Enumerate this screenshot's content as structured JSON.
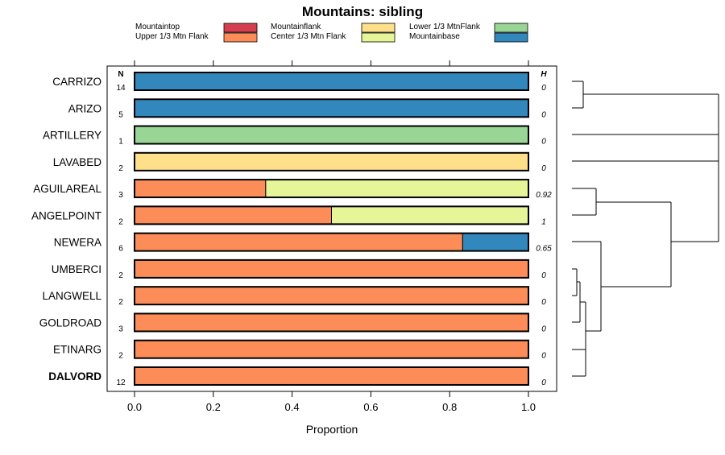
{
  "chart_data": {
    "type": "bar",
    "orientation": "horizontal",
    "stacked": true,
    "title": "Mountains: sibling",
    "xlabel": "Proportion",
    "ylabel": "",
    "xlim": [
      0,
      1
    ],
    "x_ticks": [
      "0.0",
      "0.2",
      "0.4",
      "0.6",
      "0.8",
      "1.0"
    ],
    "col_header_n": "N",
    "col_header_h": "H",
    "legend": [
      {
        "name": "Mountaintop",
        "color": "#d53e4f"
      },
      {
        "name": "Upper 1/3 Mtn Flank",
        "color": "#fc8d59"
      },
      {
        "name": "Mountainflank",
        "color": "#fee08b"
      },
      {
        "name": "Center 1/3 Mtn Flank",
        "color": "#e6f598"
      },
      {
        "name": "Lower 1/3 MtnFlank",
        "color": "#99d594"
      },
      {
        "name": "Mountainbase",
        "color": "#3288bd"
      }
    ],
    "categories": [
      "CARRIZO",
      "ARIZO",
      "ARTILLERY",
      "LAVABED",
      "AGUILAREAL",
      "ANGELPOINT",
      "NEWERA",
      "UMBERCI",
      "LANGWELL",
      "GOLDROAD",
      "ETINARG",
      "DALVORD"
    ],
    "highlighted": [
      "DALVORD"
    ],
    "n": [
      "14",
      "5",
      "1",
      "2",
      "3",
      "2",
      "6",
      "2",
      "2",
      "3",
      "2",
      "12"
    ],
    "h": [
      "0",
      "0",
      "0",
      "0",
      "0.92",
      "1",
      "0.65",
      "0",
      "0",
      "0",
      "0",
      "0"
    ],
    "series": [
      {
        "name": "Mountaintop",
        "values": [
          0,
          0,
          0,
          0,
          0,
          0,
          0,
          0,
          0,
          0,
          0,
          0
        ]
      },
      {
        "name": "Upper 1/3 Mtn Flank",
        "values": [
          0,
          0,
          0,
          0,
          0.333,
          0.5,
          0.833,
          1,
          1,
          1,
          1,
          1
        ]
      },
      {
        "name": "Mountainflank",
        "values": [
          0,
          0,
          0,
          1,
          0,
          0,
          0,
          0,
          0,
          0,
          0,
          0
        ]
      },
      {
        "name": "Center 1/3 Mtn Flank",
        "values": [
          0,
          0,
          0,
          0,
          0.667,
          0.5,
          0,
          0,
          0,
          0,
          0,
          0
        ]
      },
      {
        "name": "Lower 1/3 MtnFlank",
        "values": [
          0,
          0,
          1,
          0,
          0,
          0,
          0,
          0,
          0,
          0,
          0,
          0
        ]
      },
      {
        "name": "Mountainbase",
        "values": [
          1,
          1,
          0,
          0,
          0,
          0,
          0.167,
          0,
          0,
          0,
          0,
          0
        ]
      }
    ],
    "dendrogram": "hierarchical clustering tree of the 12 sites shown to the right"
  }
}
